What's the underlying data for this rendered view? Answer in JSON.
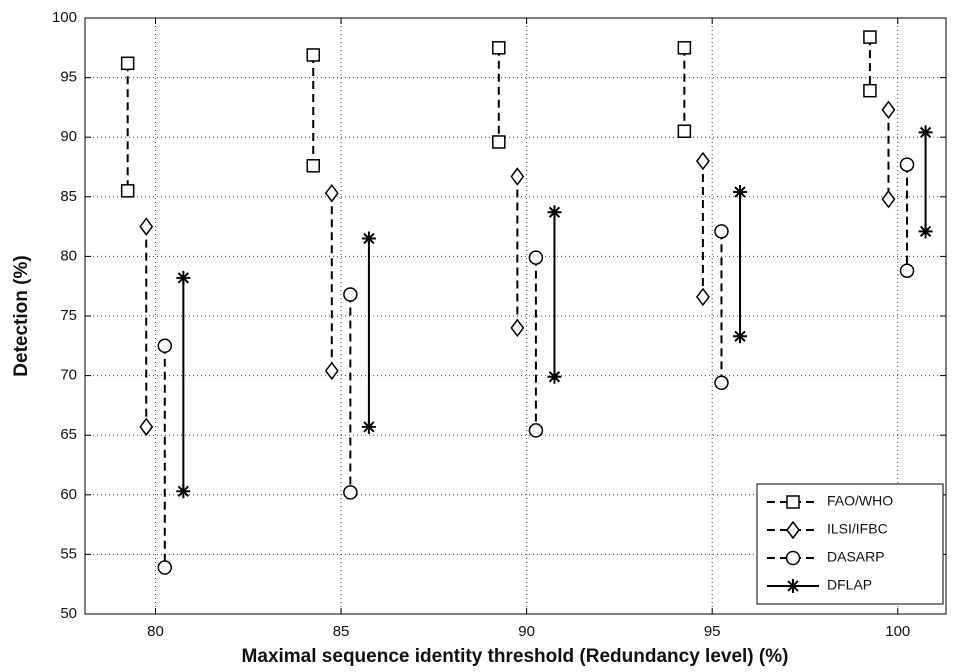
{
  "chart_data": {
    "type": "range",
    "xlabel": "Maximal sequence identity threshold (Redundancy level) (%)",
    "ylabel": "Detection (%)",
    "xlim": [
      78.1,
      101.3
    ],
    "ylim": [
      50,
      100
    ],
    "xticks": [
      80,
      85,
      90,
      95,
      100
    ],
    "yticks": [
      50,
      55,
      60,
      65,
      70,
      75,
      80,
      85,
      90,
      95,
      100
    ],
    "grid": true,
    "legend": "lower right",
    "series": [
      {
        "name": "FAO/WHO",
        "color": "#000000",
        "line": "dashed",
        "marker": "square",
        "x": [
          79.25,
          84.25,
          89.25,
          94.25,
          99.25
        ],
        "high": [
          96.2,
          96.9,
          97.5,
          97.5,
          98.4
        ],
        "low": [
          85.5,
          87.6,
          89.6,
          90.5,
          93.9
        ]
      },
      {
        "name": "ILSI/IFBC",
        "color": "#000000",
        "line": "dashed",
        "marker": "diamond",
        "x": [
          79.75,
          84.75,
          89.75,
          94.75,
          99.75
        ],
        "high": [
          82.5,
          85.3,
          86.7,
          88.0,
          92.3
        ],
        "low": [
          65.7,
          70.4,
          74.0,
          76.6,
          84.8
        ]
      },
      {
        "name": "DASARP",
        "color": "#000000",
        "line": "dashed",
        "marker": "circle",
        "x": [
          80.25,
          85.25,
          90.25,
          95.25,
          100.25
        ],
        "high": [
          72.5,
          76.8,
          79.9,
          82.1,
          87.7
        ],
        "low": [
          53.9,
          60.2,
          65.4,
          69.4,
          78.8
        ]
      },
      {
        "name": "DFLAP",
        "color": "#000000",
        "line": "solid",
        "marker": "star",
        "x": [
          80.75,
          85.75,
          90.75,
          95.75,
          100.75
        ],
        "high": [
          78.2,
          81.5,
          83.7,
          85.4,
          90.4
        ],
        "low": [
          60.3,
          65.7,
          69.9,
          73.3,
          82.1
        ]
      }
    ]
  }
}
